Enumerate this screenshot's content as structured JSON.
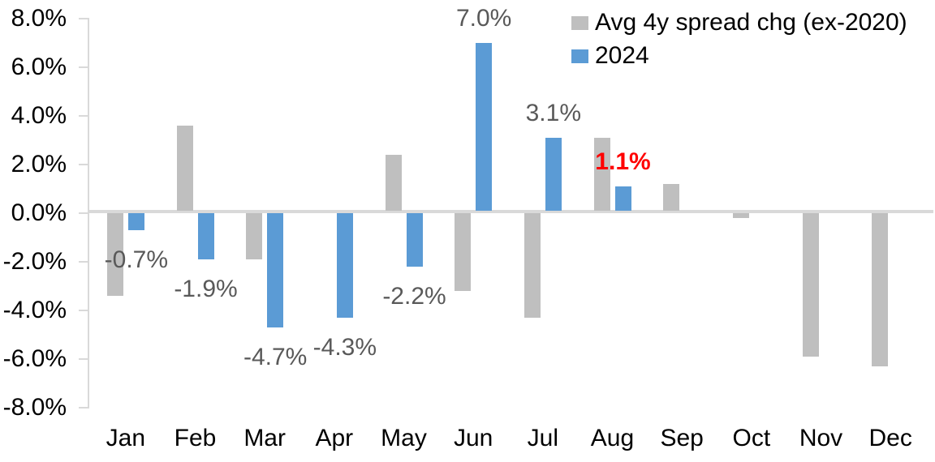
{
  "chart_data": {
    "type": "bar",
    "title": "",
    "xlabel": "",
    "ylabel": "",
    "categories": [
      "Jan",
      "Feb",
      "Mar",
      "Apr",
      "May",
      "Jun",
      "Jul",
      "Aug",
      "Sep",
      "Oct",
      "Nov",
      "Dec"
    ],
    "series": [
      {
        "name": "Avg 4y spread chg (ex-2020)",
        "color": "#BFBFBF",
        "values": [
          -3.4,
          3.6,
          -1.9,
          0.0,
          2.4,
          -3.2,
          -4.3,
          3.1,
          1.2,
          -0.2,
          -5.9,
          -6.3
        ]
      },
      {
        "name": "2024",
        "color": "#5B9BD5",
        "values": [
          -0.7,
          -1.9,
          -4.7,
          -4.3,
          -2.2,
          7.0,
          3.1,
          1.1,
          null,
          null,
          null,
          null
        ],
        "labels": [
          {
            "text": "-0.7%",
            "color": "#595959",
            "bold": false
          },
          {
            "text": "-1.9%",
            "color": "#595959",
            "bold": false
          },
          {
            "text": "-4.7%",
            "color": "#595959",
            "bold": false
          },
          {
            "text": "-4.3%",
            "color": "#595959",
            "bold": false
          },
          {
            "text": "-2.2%",
            "color": "#595959",
            "bold": false
          },
          {
            "text": "7.0%",
            "color": "#595959",
            "bold": false
          },
          {
            "text": "3.1%",
            "color": "#595959",
            "bold": false
          },
          {
            "text": "1.1%",
            "color": "#FF0000",
            "bold": true
          },
          null,
          null,
          null,
          null
        ]
      }
    ],
    "ylim": [
      -8,
      8
    ],
    "y_ticks": [
      "8.0%",
      "6.0%",
      "4.0%",
      "2.0%",
      "0.0%",
      "-2.0%",
      "-4.0%",
      "-6.0%",
      "-8.0%"
    ],
    "grid": false,
    "legend_position": "top-right",
    "colors": {
      "axis_line": "#D9D9D9",
      "tick_label": "#000000",
      "data_label_default": "#595959",
      "data_label_highlight": "#FF0000",
      "background": "#FFFFFF"
    }
  }
}
